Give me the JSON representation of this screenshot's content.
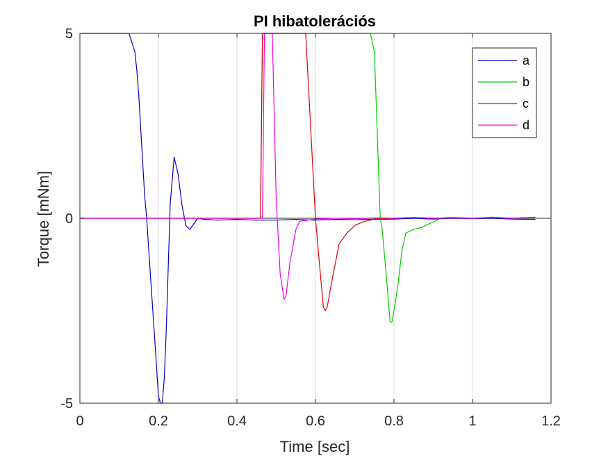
{
  "chart_data": {
    "type": "line",
    "title": "PI hibatolerációs",
    "xlabel": "Time [sec]",
    "ylabel": "Torque [mNm]",
    "xlim": [
      0,
      1.2
    ],
    "ylim": [
      -5,
      5
    ],
    "xticks": [
      "0",
      "0.2",
      "0.4",
      "0.6",
      "0.8",
      "1",
      "1.2"
    ],
    "yticks": [
      "-5",
      "0",
      "5"
    ],
    "grid": "x",
    "legend_position": "top-right",
    "series": [
      {
        "name": "a",
        "color": "#0000cc",
        "points": [
          [
            0,
            5
          ],
          [
            0.125,
            5
          ],
          [
            0.14,
            4.5
          ],
          [
            0.145,
            4.0
          ],
          [
            0.15,
            3.3
          ],
          [
            0.16,
            1.5
          ],
          [
            0.165,
            0.6
          ],
          [
            0.17,
            0
          ],
          [
            0.18,
            -1.6
          ],
          [
            0.19,
            -3.2
          ],
          [
            0.2,
            -4.8
          ],
          [
            0.205,
            -5
          ],
          [
            0.21,
            -5
          ],
          [
            0.215,
            -4.3
          ],
          [
            0.22,
            -3.0
          ],
          [
            0.23,
            0.4
          ],
          [
            0.24,
            1.65
          ],
          [
            0.25,
            1.2
          ],
          [
            0.26,
            0.35
          ],
          [
            0.27,
            -0.2
          ],
          [
            0.28,
            -0.3
          ],
          [
            0.29,
            -0.15
          ],
          [
            0.3,
            0
          ],
          [
            0.32,
            -0.03
          ],
          [
            0.35,
            -0.05
          ],
          [
            0.4,
            -0.03
          ],
          [
            0.45,
            -0.05
          ],
          [
            0.5,
            -0.05
          ],
          [
            0.55,
            -0.03
          ],
          [
            0.6,
            -0.05
          ],
          [
            0.65,
            -0.03
          ],
          [
            0.7,
            -0.02
          ],
          [
            0.75,
            -0.03
          ],
          [
            0.8,
            -0.02
          ],
          [
            0.85,
            0
          ],
          [
            0.9,
            -0.02
          ],
          [
            0.95,
            0
          ],
          [
            1.0,
            -0.01
          ],
          [
            1.05,
            0
          ],
          [
            1.1,
            -0.02
          ],
          [
            1.16,
            -0.03
          ]
        ]
      },
      {
        "name": "b",
        "color": "#00cc00",
        "points": [
          [
            0,
            0
          ],
          [
            0.46,
            0
          ],
          [
            0.465,
            5
          ],
          [
            0.74,
            5
          ],
          [
            0.75,
            4.5
          ],
          [
            0.765,
            0
          ],
          [
            0.77,
            -0.3
          ],
          [
            0.78,
            -1.5
          ],
          [
            0.79,
            -2.8
          ],
          [
            0.795,
            -2.8
          ],
          [
            0.8,
            -2.5
          ],
          [
            0.81,
            -1.8
          ],
          [
            0.82,
            -0.9
          ],
          [
            0.83,
            -0.4
          ],
          [
            0.85,
            -0.3
          ],
          [
            0.87,
            -0.25
          ],
          [
            0.9,
            -0.1
          ],
          [
            0.92,
            0
          ],
          [
            0.95,
            0.02
          ],
          [
            1.0,
            0
          ],
          [
            1.05,
            0.03
          ],
          [
            1.1,
            0
          ],
          [
            1.16,
            0.02
          ]
        ]
      },
      {
        "name": "c",
        "color": "#dd0000",
        "points": [
          [
            0,
            0
          ],
          [
            0.46,
            0
          ],
          [
            0.465,
            5
          ],
          [
            0.575,
            5
          ],
          [
            0.6,
            0
          ],
          [
            0.61,
            -1.2
          ],
          [
            0.62,
            -2.4
          ],
          [
            0.625,
            -2.5
          ],
          [
            0.63,
            -2.4
          ],
          [
            0.64,
            -1.8
          ],
          [
            0.66,
            -0.7
          ],
          [
            0.68,
            -0.4
          ],
          [
            0.7,
            -0.2
          ],
          [
            0.72,
            -0.1
          ],
          [
            0.75,
            -0.02
          ],
          [
            0.8,
            0
          ],
          [
            0.85,
            0.02
          ],
          [
            0.9,
            0
          ],
          [
            0.95,
            0.02
          ],
          [
            1.0,
            0
          ],
          [
            1.05,
            0.02
          ],
          [
            1.1,
            0
          ],
          [
            1.16,
            0.02
          ]
        ]
      },
      {
        "name": "d",
        "color": "#ee00ee",
        "points": [
          [
            0,
            0
          ],
          [
            0.465,
            0
          ],
          [
            0.47,
            5
          ],
          [
            0.49,
            5
          ],
          [
            0.5,
            0.5
          ],
          [
            0.51,
            -1.5
          ],
          [
            0.52,
            -2.2
          ],
          [
            0.525,
            -2.1
          ],
          [
            0.535,
            -1.2
          ],
          [
            0.55,
            -0.3
          ],
          [
            0.56,
            -0.08
          ],
          [
            0.6,
            -0.02
          ],
          [
            0.65,
            0
          ],
          [
            0.7,
            -0.01
          ],
          [
            0.75,
            0.01
          ],
          [
            0.8,
            0
          ],
          [
            0.85,
            0.02
          ],
          [
            0.9,
            0
          ],
          [
            0.95,
            0.01
          ],
          [
            1.0,
            0
          ],
          [
            1.05,
            0.02
          ],
          [
            1.1,
            0
          ],
          [
            1.16,
            0.03
          ]
        ]
      }
    ]
  }
}
